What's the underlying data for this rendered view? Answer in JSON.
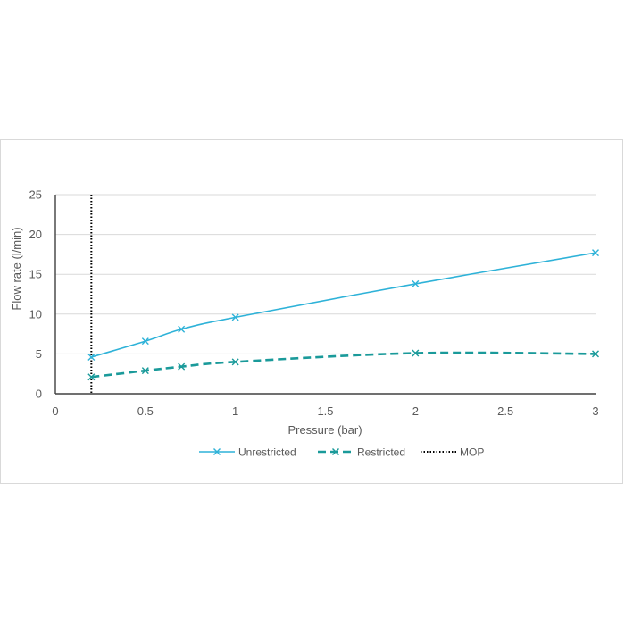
{
  "chart_data": {
    "type": "line",
    "xlabel": "Pressure (bar)",
    "ylabel": "Flow rate (l/min)",
    "xlim": [
      0,
      3
    ],
    "ylim": [
      0,
      25
    ],
    "x_ticks": [
      "0",
      "0.5",
      "1",
      "1.5",
      "2",
      "2.5",
      "3"
    ],
    "y_ticks": [
      "0",
      "5",
      "10",
      "15",
      "20",
      "25"
    ],
    "grid": "horizontal",
    "legend_position": "bottom",
    "series": [
      {
        "name": "Unrestricted",
        "color": "#2eb2d8",
        "style": "solid",
        "marker": "x",
        "x": [
          0.2,
          0.5,
          0.7,
          1,
          2,
          3
        ],
        "y": [
          4.6,
          6.6,
          8.1,
          9.6,
          13.8,
          17.7
        ]
      },
      {
        "name": "Restricted",
        "color": "#1a9a9a",
        "style": "dashed",
        "marker": "x",
        "x": [
          0.2,
          0.5,
          0.7,
          1,
          2,
          3
        ],
        "y": [
          2.1,
          2.9,
          3.4,
          4.0,
          5.1,
          5.0
        ]
      }
    ],
    "reference_lines": [
      {
        "name": "MOP",
        "x": 0.2,
        "color": "#000000",
        "style": "dotted"
      }
    ]
  }
}
